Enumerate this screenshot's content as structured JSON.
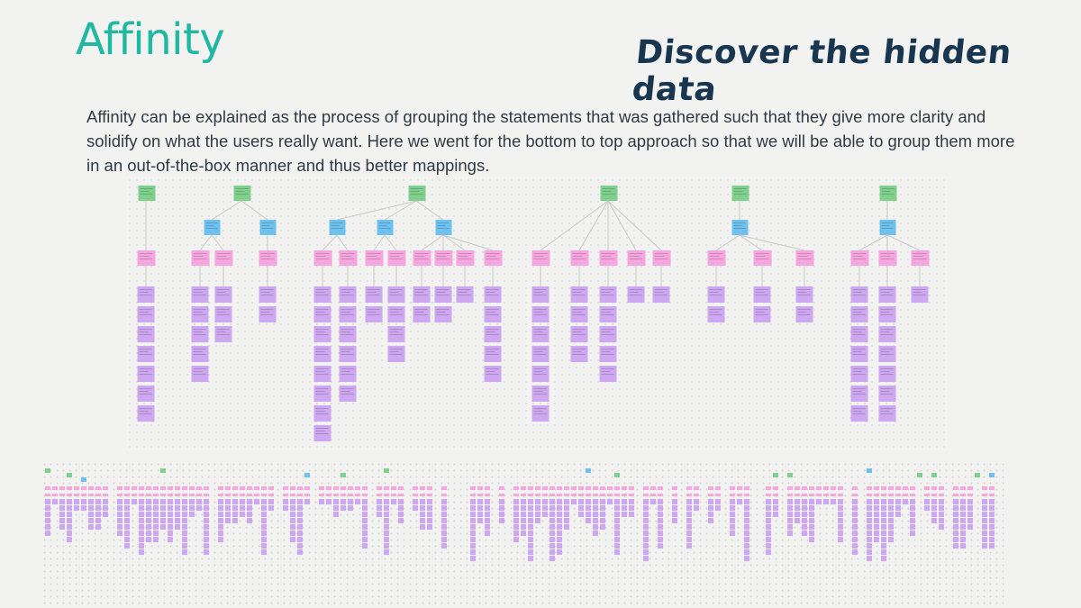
{
  "page": {
    "title": "Affinity",
    "headline": "Discover the hidden data",
    "description": "Affinity can be explained as the process of grouping the statements that was gathered such that they give more clarity and solidify on what the users really want. Here we went for the bottom to top approach so that we will be able to group them more in an out-of-the-box manner and thus better mappings."
  },
  "colors": {
    "title": "#1fb8a0",
    "headline": "#183650",
    "text": "#2f3a45",
    "green_note": "#7fd08c",
    "blue_note": "#6ec1ee",
    "pink_note": "#f6a6df",
    "purple_note": "#cda7ef",
    "connector": "#c8c8c8"
  }
}
